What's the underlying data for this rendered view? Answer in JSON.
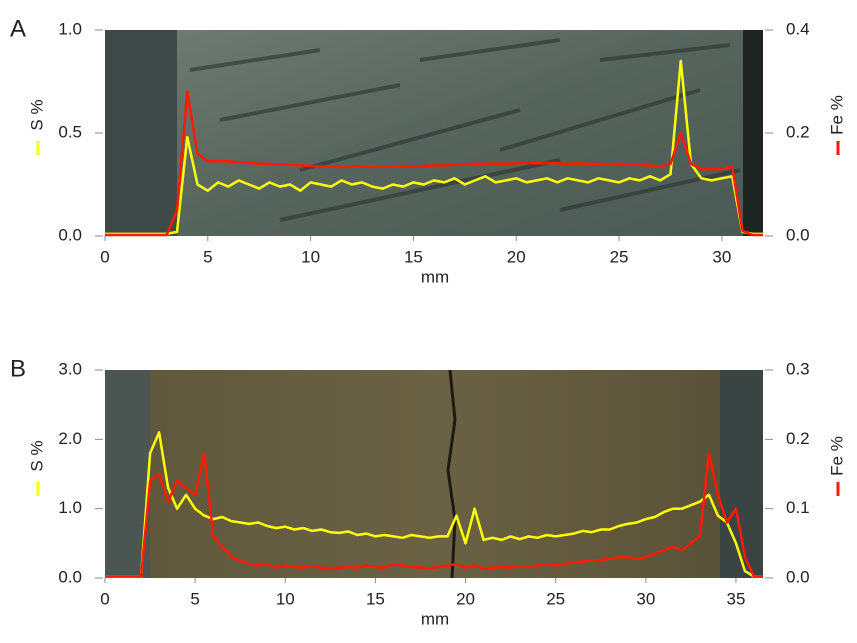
{
  "chart_data": [
    {
      "type": "line",
      "panel_label": "A",
      "xlabel": "mm",
      "ylabel": "S %",
      "y2label": "Fe %",
      "xlim": [
        0,
        32
      ],
      "xticks": [
        0,
        5,
        10,
        15,
        20,
        25,
        30
      ],
      "ylim": [
        0,
        1
      ],
      "yticks": [
        {
          "value": 0,
          "label": "0.0"
        },
        {
          "value": 0.5,
          "label": "0.5"
        },
        {
          "value": 1,
          "label": "1.0"
        }
      ],
      "y2lim": [
        0,
        0.4
      ],
      "y2ticks": [
        {
          "value": 0,
          "label": "0.0"
        },
        {
          "value": 0.2,
          "label": "0.2"
        },
        {
          "value": 0.4,
          "label": "0.4"
        }
      ],
      "x": [
        0,
        0.5,
        1,
        1.5,
        2,
        2.5,
        3,
        3.5,
        4,
        4.5,
        5,
        5.5,
        6,
        6.5,
        7,
        7.5,
        8,
        8.5,
        9,
        9.5,
        10,
        10.5,
        11,
        11.5,
        12,
        12.5,
        13,
        13.5,
        14,
        14.5,
        15,
        15.5,
        16,
        16.5,
        17,
        17.5,
        18,
        18.5,
        19,
        19.5,
        20,
        20.5,
        21,
        21.5,
        22,
        22.5,
        23,
        23.5,
        24,
        24.5,
        25,
        25.5,
        26,
        26.5,
        27,
        27.5,
        28,
        28.5,
        29,
        29.5,
        30,
        30.5,
        31,
        31.5,
        32
      ],
      "series": [
        {
          "color": "#ffff00",
          "values": [
            0.01,
            0.01,
            0.01,
            0.01,
            0.01,
            0.01,
            0.01,
            0.02,
            0.48,
            0.25,
            0.22,
            0.26,
            0.24,
            0.27,
            0.25,
            0.23,
            0.26,
            0.24,
            0.25,
            0.22,
            0.26,
            0.25,
            0.24,
            0.27,
            0.25,
            0.26,
            0.24,
            0.23,
            0.25,
            0.24,
            0.26,
            0.25,
            0.27,
            0.26,
            0.28,
            0.25,
            0.27,
            0.29,
            0.26,
            0.27,
            0.28,
            0.26,
            0.27,
            0.28,
            0.26,
            0.28,
            0.27,
            0.26,
            0.28,
            0.27,
            0.26,
            0.28,
            0.27,
            0.29,
            0.27,
            0.3,
            0.85,
            0.35,
            0.28,
            0.27,
            0.28,
            0.29,
            0.02,
            0.01,
            0.01
          ]
        },
        {
          "color": "#ff1a00",
          "axis": "y2",
          "values": [
            0.002,
            0.002,
            0.002,
            0.002,
            0.002,
            0.002,
            0.002,
            0.05,
            0.28,
            0.16,
            0.145,
            0.145,
            0.145,
            0.143,
            0.142,
            0.14,
            0.14,
            0.139,
            0.138,
            0.137,
            0.136,
            0.135,
            0.135,
            0.134,
            0.135,
            0.135,
            0.134,
            0.135,
            0.135,
            0.136,
            0.135,
            0.136,
            0.137,
            0.137,
            0.138,
            0.139,
            0.14,
            0.14,
            0.141,
            0.14,
            0.141,
            0.142,
            0.141,
            0.142,
            0.141,
            0.14,
            0.141,
            0.14,
            0.14,
            0.139,
            0.14,
            0.139,
            0.138,
            0.137,
            0.135,
            0.14,
            0.2,
            0.14,
            0.13,
            0.13,
            0.13,
            0.135,
            0.01,
            0.002,
            0.002
          ]
        }
      ]
    },
    {
      "type": "line",
      "panel_label": "B",
      "xlabel": "mm",
      "ylabel": "S %",
      "y2label": "Fe %",
      "xlim": [
        0,
        36.5
      ],
      "xticks": [
        0,
        5,
        10,
        15,
        20,
        25,
        30,
        35
      ],
      "ylim": [
        0,
        3
      ],
      "yticks": [
        {
          "value": 0,
          "label": "0.0"
        },
        {
          "value": 1,
          "label": "1.0"
        },
        {
          "value": 2,
          "label": "2.0"
        },
        {
          "value": 3,
          "label": "3.0"
        }
      ],
      "y2lim": [
        0,
        0.3
      ],
      "y2ticks": [
        {
          "value": 0,
          "label": "0.0"
        },
        {
          "value": 0.1,
          "label": "0.1"
        },
        {
          "value": 0.2,
          "label": "0.2"
        },
        {
          "value": 0.3,
          "label": "0.3"
        }
      ],
      "x": [
        0,
        0.5,
        1,
        1.5,
        2,
        2.5,
        3,
        3.5,
        4,
        4.5,
        5,
        5.5,
        6,
        6.5,
        7,
        7.5,
        8,
        8.5,
        9,
        9.5,
        10,
        10.5,
        11,
        11.5,
        12,
        12.5,
        13,
        13.5,
        14,
        14.5,
        15,
        15.5,
        16,
        16.5,
        17,
        17.5,
        18,
        18.5,
        19,
        19.5,
        20,
        20.5,
        21,
        21.5,
        22,
        22.5,
        23,
        23.5,
        24,
        24.5,
        25,
        25.5,
        26,
        26.5,
        27,
        27.5,
        28,
        28.5,
        29,
        29.5,
        30,
        30.5,
        31,
        31.5,
        32,
        32.5,
        33,
        33.5,
        34,
        34.5,
        35,
        35.5,
        36,
        36.5
      ],
      "series": [
        {
          "color": "#ffff00",
          "values": [
            0.02,
            0.02,
            0.02,
            0.02,
            0.02,
            1.8,
            2.1,
            1.3,
            1.0,
            1.2,
            1.0,
            0.9,
            0.85,
            0.88,
            0.82,
            0.8,
            0.78,
            0.8,
            0.75,
            0.72,
            0.74,
            0.7,
            0.72,
            0.68,
            0.7,
            0.66,
            0.65,
            0.67,
            0.62,
            0.64,
            0.6,
            0.62,
            0.6,
            0.58,
            0.62,
            0.6,
            0.58,
            0.6,
            0.6,
            0.9,
            0.5,
            1.0,
            0.55,
            0.58,
            0.55,
            0.6,
            0.56,
            0.6,
            0.58,
            0.62,
            0.6,
            0.62,
            0.64,
            0.68,
            0.66,
            0.7,
            0.7,
            0.75,
            0.78,
            0.8,
            0.85,
            0.88,
            0.95,
            1.0,
            1.0,
            1.05,
            1.1,
            1.2,
            0.9,
            0.8,
            0.5,
            0.1,
            0.02,
            0.02
          ]
        },
        {
          "color": "#ff1a00",
          "axis": "y2",
          "values": [
            0.002,
            0.002,
            0.002,
            0.002,
            0.002,
            0.14,
            0.15,
            0.11,
            0.14,
            0.13,
            0.12,
            0.18,
            0.06,
            0.045,
            0.03,
            0.025,
            0.02,
            0.018,
            0.02,
            0.015,
            0.018,
            0.016,
            0.015,
            0.017,
            0.015,
            0.014,
            0.015,
            0.016,
            0.015,
            0.018,
            0.016,
            0.015,
            0.02,
            0.018,
            0.016,
            0.015,
            0.014,
            0.016,
            0.018,
            0.02,
            0.015,
            0.018,
            0.014,
            0.015,
            0.016,
            0.015,
            0.017,
            0.016,
            0.018,
            0.02,
            0.018,
            0.02,
            0.022,
            0.024,
            0.025,
            0.026,
            0.028,
            0.03,
            0.03,
            0.028,
            0.03,
            0.035,
            0.04,
            0.045,
            0.04,
            0.05,
            0.06,
            0.18,
            0.12,
            0.08,
            0.1,
            0.03,
            0.002,
            0.002
          ]
        }
      ]
    }
  ]
}
